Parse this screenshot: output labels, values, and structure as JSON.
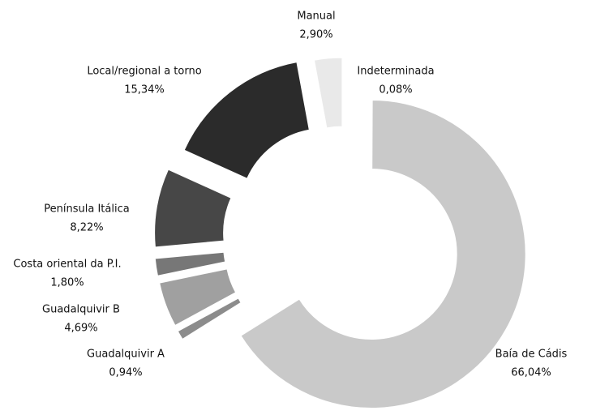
{
  "chart_data": {
    "type": "donut",
    "categories": [
      "Indeterminada",
      "Baía de Cádis",
      "Guadalquivir A",
      "Guadalquivir B",
      "Costa oriental da P.I.",
      "Península Itálica",
      "Local/regional a torno",
      "Manual"
    ],
    "values": [
      0.08,
      66.04,
      0.94,
      4.69,
      1.8,
      8.22,
      15.34,
      2.9
    ],
    "value_labels": [
      "0,08%",
      "66,04%",
      "0,94%",
      "4,69%",
      "1,80%",
      "8,22%",
      "15,34%",
      "2,90%"
    ],
    "colors": [
      "#f2f2f2",
      "#c9c9c9",
      "#8c8c8c",
      "#a0a0a0",
      "#777777",
      "#474747",
      "#2b2b2b",
      "#e9e9e9"
    ]
  }
}
